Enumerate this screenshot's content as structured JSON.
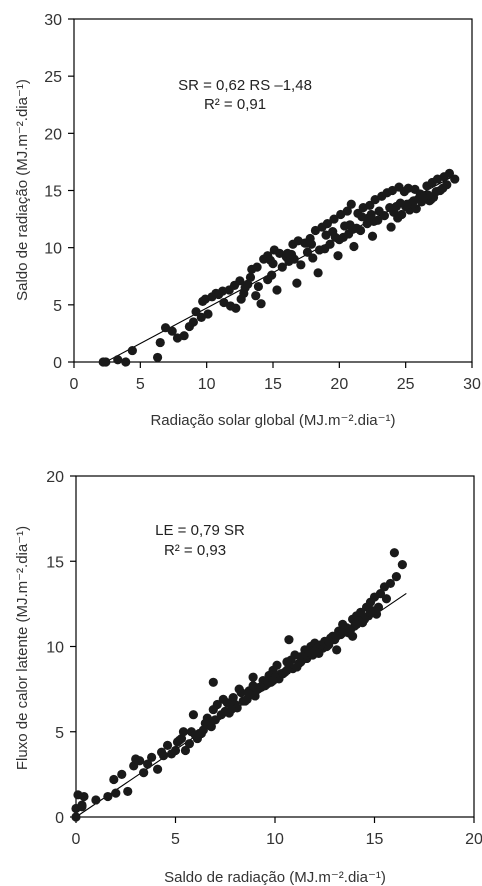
{
  "chart_data": [
    {
      "type": "scatter",
      "xlabel": "Radiação solar global (MJ.m⁻².dia⁻¹)",
      "ylabel": "Saldo de radiação (MJ.m⁻².dia⁻¹)",
      "xlim": [
        0,
        30
      ],
      "ylim": [
        0,
        30
      ],
      "xticks": [
        "0",
        "5",
        "10",
        "15",
        "20",
        "25",
        "30"
      ],
      "yticks": [
        "0",
        "5",
        "10",
        "15",
        "20",
        "25",
        "30"
      ],
      "annotation": [
        "SR = 0,62 RS –1,48",
        "R² = 0,91"
      ],
      "fit_line": {
        "x": [
          2.5,
          28.5
        ],
        "y": [
          0.07,
          16.19
        ]
      },
      "points": {
        "x": [
          2.2,
          2.4,
          3.3,
          3.9,
          4.4,
          6.3,
          6.5,
          6.9,
          7.4,
          7.8,
          8.3,
          8.7,
          9.0,
          9.6,
          9.9,
          10.1,
          10.7,
          11.3,
          11.7,
          12.1,
          12.5,
          12.9,
          12.6,
          13.4,
          13.8,
          14.3,
          14.6,
          15.1,
          15.5,
          16.0,
          16.5,
          16.9,
          17.4,
          17.8,
          18.2,
          18.7,
          19.1,
          19.6,
          20.1,
          20.6,
          20.9,
          21.4,
          21.8,
          22.3,
          22.7,
          23.2,
          23.6,
          24.0,
          24.5,
          24.9,
          25.2,
          25.7,
          26.1,
          26.6,
          27.0,
          27.4,
          27.9,
          28.3,
          28.7,
          15.3,
          16.8,
          18.4,
          19.9,
          21.1,
          22.5,
          23.9,
          24.4,
          25.3,
          26.2,
          27.1,
          13.7,
          14.9,
          17.1,
          18.9,
          20.3,
          21.6,
          22.9,
          24.7,
          25.8,
          26.8,
          12.2,
          13.9,
          15.7,
          17.6,
          19.3,
          20.7,
          22.1,
          23.4,
          25.0,
          26.4,
          27.6,
          14.1,
          16.2,
          18.0,
          20.0,
          21.3,
          22.6,
          24.1,
          25.5,
          26.9,
          11.8,
          12.8,
          14.6,
          16.6,
          18.5,
          19.7,
          21.0,
          22.2,
          23.8,
          25.1,
          26.0,
          27.3,
          10.4,
          11.2,
          13.1,
          15.0,
          16.4,
          17.9,
          19.5,
          20.8,
          22.4,
          24.3,
          25.6,
          26.7,
          28.1,
          9.2,
          9.7,
          10.9,
          13.3,
          14.8,
          16.1,
          17.5,
          19.0,
          20.4,
          21.7,
          23.0,
          24.6,
          26.3,
          27.8
        ],
        "y": [
          0.0,
          0.0,
          0.2,
          0.0,
          1.0,
          0.4,
          1.7,
          3.0,
          2.7,
          2.1,
          2.3,
          3.1,
          3.5,
          3.9,
          5.5,
          4.2,
          6.0,
          5.2,
          6.3,
          6.7,
          7.1,
          6.5,
          5.5,
          8.1,
          8.3,
          9.0,
          9.3,
          9.8,
          9.5,
          9.2,
          10.3,
          10.6,
          10.4,
          10.8,
          11.5,
          11.8,
          12.1,
          12.5,
          12.9,
          13.2,
          13.8,
          13.0,
          13.5,
          13.7,
          14.2,
          14.5,
          14.8,
          15.0,
          15.3,
          14.9,
          15.2,
          15.1,
          14.7,
          15.4,
          15.7,
          16.0,
          16.2,
          16.5,
          16.0,
          6.3,
          6.9,
          7.8,
          9.3,
          10.1,
          11.0,
          11.8,
          12.6,
          13.3,
          14.0,
          14.4,
          5.8,
          7.6,
          8.5,
          9.9,
          10.9,
          11.5,
          12.4,
          12.9,
          13.4,
          14.1,
          4.7,
          6.6,
          8.3,
          9.6,
          10.3,
          11.2,
          12.1,
          12.8,
          13.6,
          14.5,
          15.0,
          5.1,
          8.8,
          9.1,
          10.7,
          11.7,
          12.3,
          13.1,
          13.8,
          14.2,
          4.9,
          6.0,
          7.2,
          9.0,
          9.8,
          10.9,
          11.6,
          12.6,
          13.5,
          13.8,
          14.3,
          14.9,
          5.7,
          6.2,
          6.8,
          8.6,
          9.4,
          10.3,
          11.4,
          12.0,
          12.9,
          13.6,
          14.1,
          14.6,
          15.5,
          4.4,
          5.3,
          5.9,
          7.4,
          8.9,
          9.5,
          10.4,
          11.1,
          11.9,
          12.7,
          13.2,
          13.9,
          14.4,
          15.2
        ]
      }
    },
    {
      "type": "scatter",
      "xlabel": "Saldo de radiação (MJ.m⁻².dia⁻¹)",
      "ylabel": "Fluxo de calor latente (MJ.m⁻².dia⁻¹)",
      "xlim": [
        0,
        20
      ],
      "ylim": [
        0,
        20
      ],
      "xticks": [
        "0",
        "5",
        "10",
        "15",
        "20"
      ],
      "yticks": [
        "0",
        "5",
        "10",
        "15",
        "20"
      ],
      "annotation": [
        "LE = 0,79 SR",
        "R² = 0,93"
      ],
      "fit_line": {
        "x": [
          0,
          16.6
        ],
        "y": [
          0,
          13.11
        ]
      },
      "points": {
        "x": [
          0.0,
          0.0,
          0.1,
          0.3,
          0.4,
          0.3,
          1.0,
          1.6,
          1.9,
          2.0,
          2.3,
          2.6,
          2.9,
          3.0,
          3.4,
          3.8,
          4.1,
          4.3,
          4.6,
          5.0,
          5.3,
          5.4,
          5.7,
          5.9,
          6.2,
          6.4,
          6.6,
          6.9,
          7.1,
          7.4,
          7.6,
          7.9,
          8.2,
          8.4,
          8.7,
          8.9,
          9.2,
          9.4,
          9.7,
          9.9,
          10.1,
          10.3,
          10.6,
          10.8,
          11.0,
          11.3,
          11.5,
          11.8,
          12.0,
          12.2,
          12.5,
          12.7,
          12.9,
          13.2,
          13.4,
          13.6,
          13.9,
          14.1,
          14.3,
          14.6,
          14.8,
          15.0,
          15.3,
          15.5,
          15.8,
          16.0,
          16.1,
          16.4,
          5.1,
          5.8,
          6.5,
          7.3,
          8.0,
          8.8,
          9.5,
          10.2,
          10.9,
          11.6,
          12.4,
          13.0,
          13.7,
          14.4,
          15.1,
          5.5,
          6.1,
          6.8,
          7.7,
          8.5,
          9.1,
          9.8,
          10.5,
          11.2,
          11.9,
          12.6,
          13.3,
          14.0,
          14.7,
          6.0,
          7.0,
          8.1,
          9.0,
          9.6,
          10.4,
          11.1,
          11.7,
          12.3,
          13.1,
          13.8,
          14.5,
          15.2,
          4.8,
          6.3,
          7.5,
          8.6,
          9.3,
          10.0,
          10.7,
          11.4,
          12.1,
          12.8,
          13.5,
          14.2,
          14.9,
          15.6,
          3.6,
          4.4,
          5.2,
          6.7,
          7.8,
          8.3,
          8.9,
          9.9,
          10.6,
          11.3,
          12.0,
          12.7,
          13.4,
          14.1,
          14.8,
          3.2,
          6.9,
          8.7,
          10.7,
          12.2,
          13.1,
          13.9
        ],
        "y": [
          0.0,
          0.5,
          1.3,
          0.6,
          1.2,
          0.7,
          1.0,
          1.2,
          2.2,
          1.4,
          2.5,
          1.5,
          3.0,
          3.4,
          2.6,
          3.5,
          2.8,
          3.8,
          4.2,
          3.9,
          4.6,
          5.0,
          4.3,
          6.0,
          4.9,
          5.1,
          5.8,
          6.3,
          6.6,
          6.9,
          6.7,
          7.0,
          7.5,
          6.8,
          7.4,
          8.2,
          7.6,
          8.0,
          8.3,
          8.6,
          8.9,
          8.4,
          9.1,
          9.2,
          9.5,
          9.4,
          9.8,
          10.0,
          10.2,
          9.6,
          10.3,
          10.1,
          10.6,
          10.9,
          11.3,
          11.1,
          11.6,
          11.8,
          12.0,
          12.3,
          12.6,
          12.9,
          13.1,
          13.5,
          13.7,
          15.5,
          14.1,
          14.8,
          4.4,
          5.0,
          5.5,
          6.0,
          6.6,
          7.2,
          7.7,
          8.1,
          8.7,
          9.3,
          9.9,
          10.4,
          10.8,
          11.4,
          11.9,
          3.9,
          4.6,
          5.3,
          6.1,
          6.8,
          7.5,
          7.9,
          8.5,
          9.0,
          9.5,
          10.0,
          10.7,
          11.2,
          11.8,
          4.8,
          5.7,
          6.4,
          7.1,
          7.8,
          8.4,
          8.8,
          9.7,
          10.1,
          10.6,
          11.0,
          11.6,
          12.3,
          3.7,
          4.9,
          6.2,
          6.9,
          7.6,
          8.2,
          8.9,
          9.4,
          9.9,
          10.5,
          11.0,
          11.5,
          12.1,
          12.8,
          3.1,
          3.6,
          4.5,
          5.6,
          6.3,
          7.3,
          7.7,
          8.0,
          8.6,
          9.1,
          9.7,
          10.3,
          10.8,
          11.3,
          12.0,
          3.3,
          7.9,
          7.2,
          10.4,
          9.6,
          9.8,
          10.6
        ]
      }
    }
  ]
}
